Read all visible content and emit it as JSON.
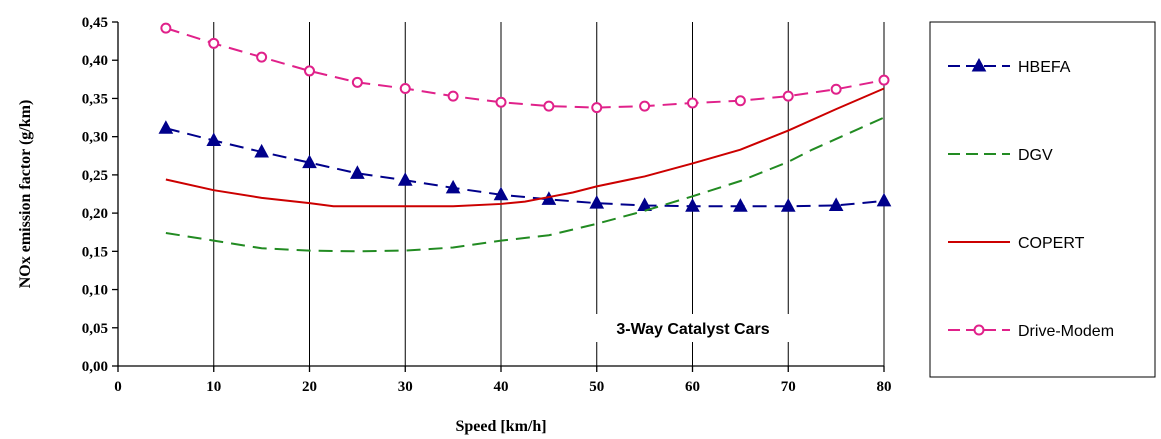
{
  "chart_data": {
    "type": "line",
    "title": "",
    "xlabel": "Speed [km/h]",
    "ylabel": "NOx emission factor (g/km)",
    "xlim": [
      0,
      80
    ],
    "ylim": [
      0,
      0.45
    ],
    "x_ticks": [
      0,
      10,
      20,
      30,
      40,
      50,
      60,
      70,
      80
    ],
    "x_tick_labels": [
      "0",
      "10",
      "20",
      "30",
      "40",
      "50",
      "60",
      "70",
      "80"
    ],
    "y_ticks": [
      0,
      0.05,
      0.1,
      0.15,
      0.2,
      0.25,
      0.3,
      0.35,
      0.4,
      0.45
    ],
    "y_tick_labels": [
      "0,00",
      "0,05",
      "0,10",
      "0,15",
      "0,20",
      "0,25",
      "0,30",
      "0,35",
      "0,40",
      "0,45"
    ],
    "grid": "vertical",
    "legend_position": "right",
    "annotation": "3-Way Catalyst Cars",
    "series": [
      {
        "name": "HBEFA",
        "color": "#00008B",
        "line_style": "long-dash",
        "marker": "filled-triangle",
        "x": [
          5,
          10,
          15,
          20,
          25,
          30,
          35,
          40,
          45,
          50,
          55,
          60,
          65,
          70,
          75,
          80
        ],
        "y": [
          0.311,
          0.295,
          0.28,
          0.266,
          0.252,
          0.243,
          0.233,
          0.224,
          0.218,
          0.213,
          0.21,
          0.209,
          0.209,
          0.209,
          0.21,
          0.216
        ]
      },
      {
        "name": "DGV",
        "color": "#228B22",
        "line_style": "long-dash",
        "marker": "none",
        "x": [
          5,
          10,
          15,
          20,
          25,
          30,
          35,
          40,
          45,
          50,
          55,
          60,
          65,
          70,
          72.5,
          75,
          80
        ],
        "y": [
          0.174,
          0.164,
          0.154,
          0.151,
          0.15,
          0.151,
          0.155,
          0.164,
          0.171,
          0.186,
          0.203,
          0.222,
          0.242,
          0.267,
          0.283,
          0.297,
          0.325
        ]
      },
      {
        "name": "COPERT",
        "color": "#CC0000",
        "line_style": "solid",
        "marker": "none",
        "x": [
          5,
          10,
          15,
          20,
          22.5,
          25,
          30,
          35,
          40,
          42.5,
          45,
          47.5,
          50,
          55,
          60,
          65,
          70,
          75,
          80
        ],
        "y": [
          0.244,
          0.23,
          0.22,
          0.213,
          0.209,
          0.209,
          0.209,
          0.209,
          0.212,
          0.215,
          0.221,
          0.227,
          0.235,
          0.248,
          0.265,
          0.283,
          0.308,
          0.336,
          0.363
        ]
      },
      {
        "name": "Drive-Modem",
        "color": "#E0218A",
        "line_style": "long-dash",
        "marker": "open-circle",
        "x": [
          5,
          10,
          15,
          20,
          25,
          30,
          35,
          40,
          45,
          50,
          55,
          60,
          65,
          70,
          75,
          80
        ],
        "y": [
          0.442,
          0.422,
          0.404,
          0.386,
          0.371,
          0.363,
          0.353,
          0.345,
          0.34,
          0.338,
          0.34,
          0.344,
          0.347,
          0.353,
          0.362,
          0.374
        ]
      }
    ]
  }
}
